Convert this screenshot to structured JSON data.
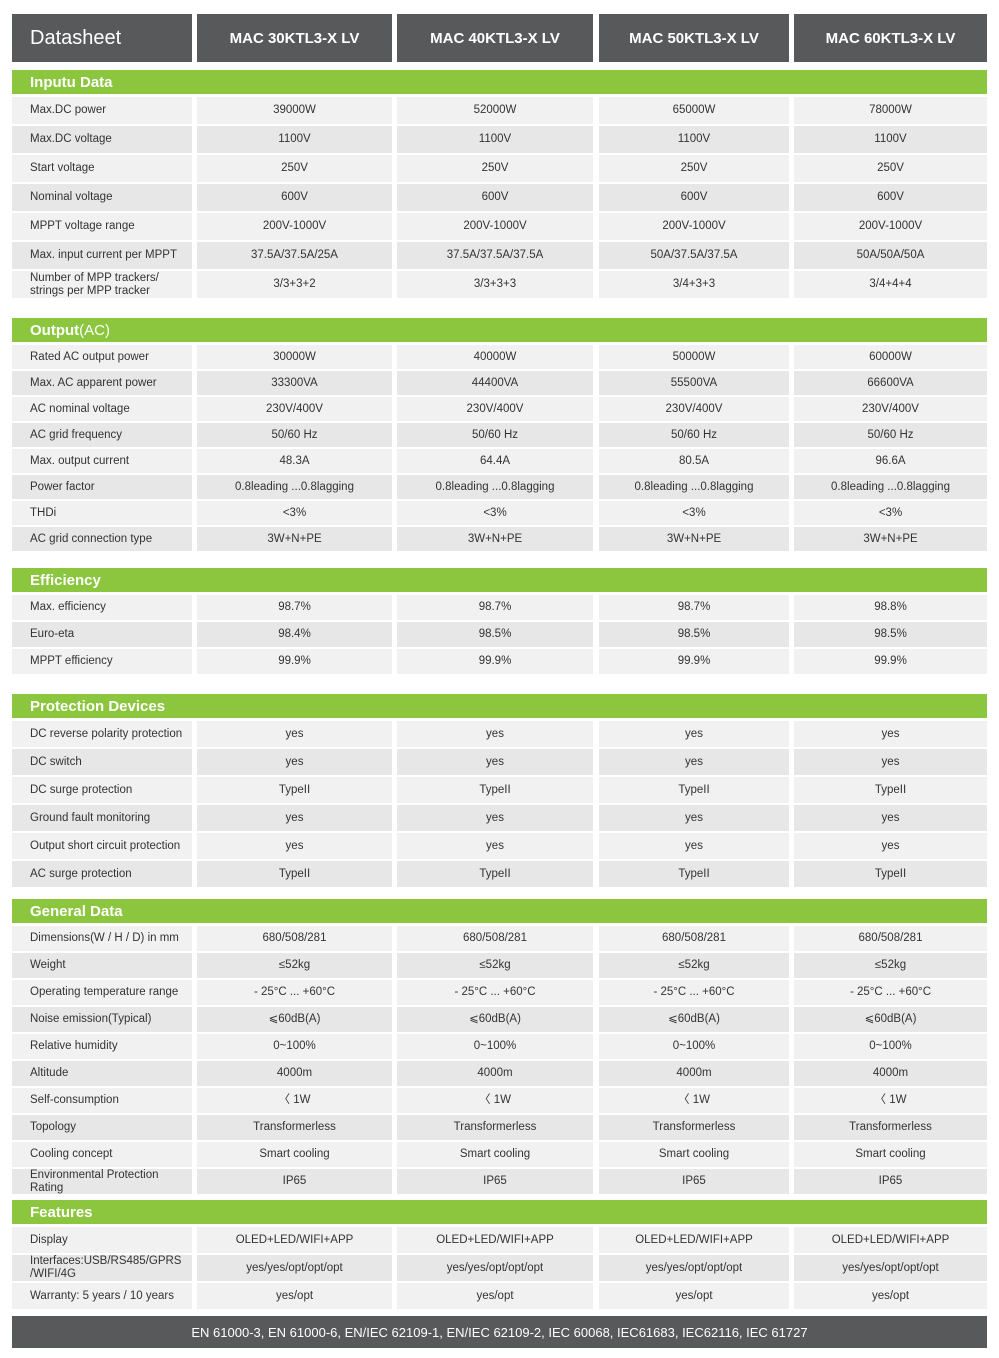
{
  "header": {
    "title": "Datasheet",
    "models": [
      "MAC 30KTL3-X LV",
      "MAC 40KTL3-X LV",
      "MAC 50KTL3-X LV",
      "MAC 60KTL3-X LV"
    ]
  },
  "sections": [
    {
      "title": "Inputu Data",
      "rows": [
        {
          "label": "Max.DC power",
          "values": [
            "39000W",
            "52000W",
            "65000W",
            "78000W"
          ]
        },
        {
          "label": "Max.DC voltage",
          "values": [
            "1100V",
            "1100V",
            "1100V",
            "1100V"
          ]
        },
        {
          "label": "Start voltage",
          "values": [
            "250V",
            "250V",
            "250V",
            "250V"
          ]
        },
        {
          "label": "Nominal voltage",
          "values": [
            "600V",
            "600V",
            "600V",
            "600V"
          ]
        },
        {
          "label": "MPPT voltage range",
          "values": [
            "200V-1000V",
            "200V-1000V",
            "200V-1000V",
            "200V-1000V"
          ]
        },
        {
          "label": "Max. input current per MPPT",
          "values": [
            "37.5A/37.5A/25A",
            "37.5A/37.5A/37.5A",
            "50A/37.5A/37.5A",
            "50A/50A/50A"
          ]
        },
        {
          "label": "Number of MPP trackers/\nstrings per MPP tracker",
          "values": [
            "3/3+3+2",
            "3/3+3+3",
            "3/4+3+3",
            "3/4+4+4"
          ]
        }
      ]
    },
    {
      "title": "Output",
      "note": "(AC)",
      "rows": [
        {
          "label": "Rated AC output power",
          "values": [
            "30000W",
            "40000W",
            "50000W",
            "60000W"
          ]
        },
        {
          "label": "Max. AC apparent power",
          "values": [
            "33300VA",
            "44400VA",
            "55500VA",
            "66600VA"
          ]
        },
        {
          "label": "AC nominal voltage",
          "values": [
            "230V/400V",
            "230V/400V",
            "230V/400V",
            "230V/400V"
          ]
        },
        {
          "label": "AC grid frequency",
          "values": [
            "50/60 Hz",
            "50/60 Hz",
            "50/60 Hz",
            "50/60 Hz"
          ]
        },
        {
          "label": "Max. output current",
          "values": [
            "48.3A",
            "64.4A",
            "80.5A",
            "96.6A"
          ]
        },
        {
          "label": "Power factor",
          "values": [
            "0.8leading ...0.8lagging",
            "0.8leading ...0.8lagging",
            "0.8leading ...0.8lagging",
            "0.8leading ...0.8lagging"
          ]
        },
        {
          "label": "THDi",
          "values": [
            "<3%",
            "<3%",
            "<3%",
            "<3%"
          ]
        },
        {
          "label": "AC grid connection type",
          "values": [
            "3W+N+PE",
            "3W+N+PE",
            "3W+N+PE",
            "3W+N+PE"
          ]
        }
      ]
    },
    {
      "title": "Efficiency",
      "rows": [
        {
          "label": "Max. efficiency",
          "values": [
            "98.7%",
            "98.7%",
            "98.7%",
            "98.8%"
          ]
        },
        {
          "label": "Euro-eta",
          "values": [
            "98.4%",
            "98.5%",
            "98.5%",
            "98.5%"
          ]
        },
        {
          "label": "MPPT efficiency",
          "values": [
            "99.9%",
            "99.9%",
            "99.9%",
            "99.9%"
          ]
        }
      ]
    },
    {
      "title": "Protection Devices",
      "rows": [
        {
          "label": "DC reverse polarity protection",
          "values": [
            "yes",
            "yes",
            "yes",
            "yes"
          ]
        },
        {
          "label": "DC switch",
          "values": [
            "yes",
            "yes",
            "yes",
            "yes"
          ]
        },
        {
          "label": "DC surge protection",
          "values": [
            "TypeII",
            "TypeII",
            "TypeII",
            "TypeII"
          ]
        },
        {
          "label": "Ground fault monitoring",
          "values": [
            "yes",
            "yes",
            "yes",
            "yes"
          ]
        },
        {
          "label": "Output short circuit protection",
          "values": [
            "yes",
            "yes",
            "yes",
            "yes"
          ]
        },
        {
          "label": "AC surge protection",
          "values": [
            "TypeII",
            "TypeII",
            "TypeII",
            "TypeII"
          ]
        }
      ]
    },
    {
      "title": "General Data",
      "rows": [
        {
          "label": "Dimensions(W / H / D) in mm",
          "values": [
            "680/508/281",
            "680/508/281",
            "680/508/281",
            "680/508/281"
          ]
        },
        {
          "label": "Weight",
          "values": [
            "≤52kg",
            "≤52kg",
            "≤52kg",
            "≤52kg"
          ]
        },
        {
          "label": "Operating temperature range",
          "values": [
            "- 25°C ... +60°C",
            "- 25°C ... +60°C",
            "- 25°C ... +60°C",
            "- 25°C ... +60°C"
          ]
        },
        {
          "label": "Noise emission(Typical)",
          "values": [
            "⩽60dB(A)",
            "⩽60dB(A)",
            "⩽60dB(A)",
            "⩽60dB(A)"
          ]
        },
        {
          "label": "Relative humidity",
          "values": [
            "0~100%",
            "0~100%",
            "0~100%",
            "0~100%"
          ]
        },
        {
          "label": "Altitude",
          "values": [
            "4000m",
            "4000m",
            "4000m",
            "4000m"
          ]
        },
        {
          "label": "Self-consumption",
          "values": [
            "〈 1W",
            "〈 1W",
            "〈 1W",
            "〈 1W"
          ]
        },
        {
          "label": "Topology",
          "values": [
            "Transformerless",
            "Transformerless",
            "Transformerless",
            "Transformerless"
          ]
        },
        {
          "label": "Cooling concept",
          "values": [
            "Smart cooling",
            "Smart cooling",
            "Smart cooling",
            "Smart cooling"
          ]
        },
        {
          "label": "Environmental Protection Rating",
          "values": [
            "IP65",
            "IP65",
            "IP65",
            "IP65"
          ]
        }
      ]
    },
    {
      "title": "Features",
      "rows": [
        {
          "label": "Display",
          "values": [
            "OLED+LED/WIFI+APP",
            "OLED+LED/WIFI+APP",
            "OLED+LED/WIFI+APP",
            "OLED+LED/WIFI+APP"
          ]
        },
        {
          "label": "Interfaces:USB/RS485/GPRS\n/WIFI/4G",
          "values": [
            "yes/yes/opt/opt/opt",
            "yes/yes/opt/opt/opt",
            "yes/yes/opt/opt/opt",
            "yes/yes/opt/opt/opt"
          ]
        },
        {
          "label": "Warranty: 5 years / 10 years",
          "values": [
            "yes/opt",
            "yes/opt",
            "yes/opt",
            "yes/opt"
          ]
        }
      ]
    }
  ],
  "footer": "EN 61000-3, EN 61000-6, EN/IEC 62109-1, EN/IEC 62109-2, IEC 60068, IEC61683, IEC62116, IEC 61727"
}
